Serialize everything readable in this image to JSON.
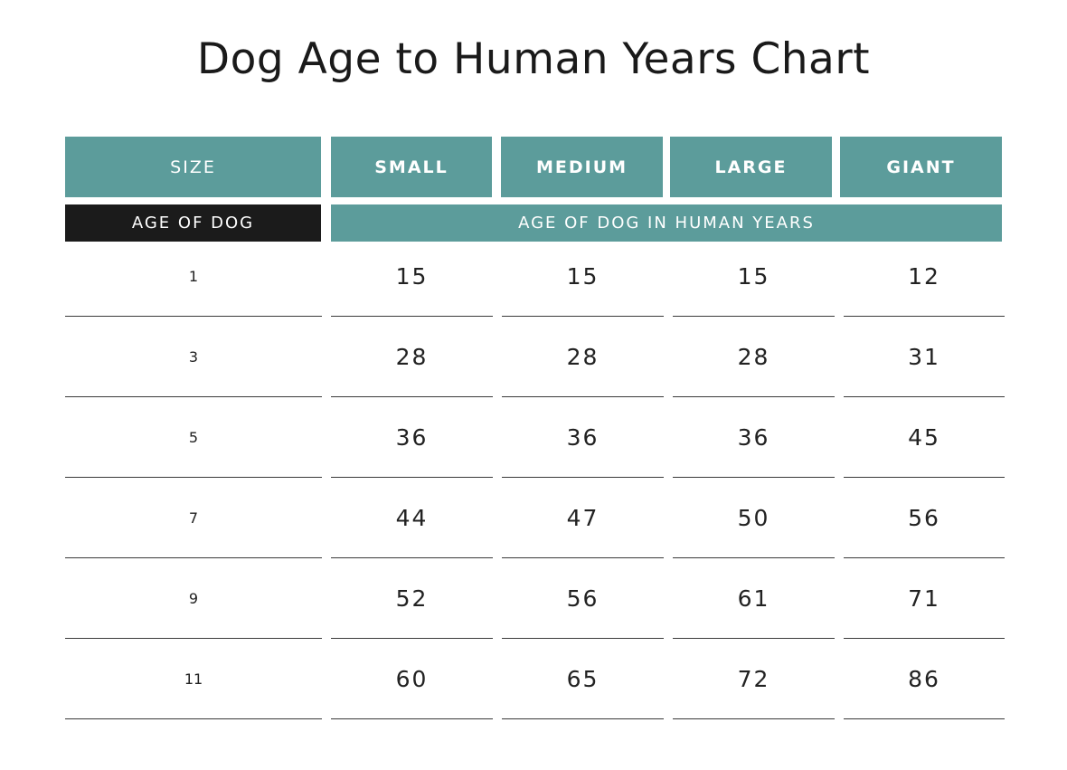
{
  "title": "Dog Age to Human Years Chart",
  "header": {
    "size_label": "SIZE",
    "columns": [
      "SMALL",
      "MEDIUM",
      "LARGE",
      "GIANT"
    ]
  },
  "subheader": {
    "left": "AGE OF DOG",
    "right": "AGE OF DOG IN HUMAN YEARS"
  },
  "colors": {
    "teal": "#5c9c9b",
    "dark": "#1b1b1b"
  },
  "chart_data": {
    "type": "table",
    "title": "Dog Age to Human Years Chart",
    "columns": [
      "SIZE",
      "SMALL",
      "MEDIUM",
      "LARGE",
      "GIANT"
    ],
    "row_header": "AGE OF DOG",
    "value_header": "AGE OF DOG IN HUMAN YEARS",
    "rows": [
      {
        "age": "1",
        "values": [
          "15",
          "15",
          "15",
          "12"
        ]
      },
      {
        "age": "3",
        "values": [
          "28",
          "28",
          "28",
          "31"
        ]
      },
      {
        "age": "5",
        "values": [
          "36",
          "36",
          "36",
          "45"
        ]
      },
      {
        "age": "7",
        "values": [
          "44",
          "47",
          "50",
          "56"
        ]
      },
      {
        "age": "9",
        "values": [
          "52",
          "56",
          "61",
          "71"
        ]
      },
      {
        "age": "11",
        "values": [
          "60",
          "65",
          "72",
          "86"
        ]
      }
    ]
  }
}
